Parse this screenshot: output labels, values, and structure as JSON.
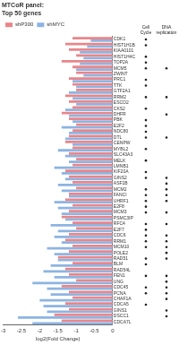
{
  "chart_data": {
    "type": "bar",
    "orientation": "horizontal",
    "title": [
      "MTCoR panel:",
      "Top 50 genes"
    ],
    "x_label": "log2(Fold Change)",
    "categories": [
      "CDK1",
      "HIST1H1B",
      "KIAA0101",
      "HIST1H4C",
      "TOP2A",
      "MCM5",
      "ZWINT",
      "PRC1",
      "TTK",
      "GTF2A1",
      "RRM2",
      "ESCO2",
      "CKS2",
      "DHFR",
      "PBK",
      "E2F2",
      "NDC80",
      "DTL",
      "CENPW",
      "MYBL2",
      "SLC43A3",
      "MELK",
      "LMNB1",
      "KIF20A",
      "GINS2",
      "ASF1B",
      "MCM2",
      "FANCI",
      "UHRF1",
      "E2F8",
      "MCM3",
      "PSMC3IP",
      "RFC4",
      "E2F7",
      "CDC6",
      "RRM1",
      "MCM10",
      "POLE2",
      "RAD51",
      "BLM",
      "RAD54L",
      "FEN1",
      "UNG",
      "CDC45",
      "PCNA",
      "CHAF1A",
      "CDCA5",
      "GINS1",
      "DSCC1",
      "CDCA7L"
    ],
    "series": [
      {
        "name": "shP300",
        "color": "#e8868a",
        "values": [
          -1.1,
          -1.3,
          -1.2,
          -1.0,
          -1.4,
          -1.1,
          -1.0,
          -1.2,
          -1.1,
          -1.0,
          -1.3,
          -1.2,
          -1.1,
          -1.4,
          -1.2,
          -1.0,
          -1.1,
          -1.2,
          -1.3,
          -1.1,
          -1.2,
          -1.0,
          -1.1,
          -1.3,
          -1.2,
          -1.1,
          -1.0,
          -1.2,
          -1.3,
          -1.1,
          -1.2,
          -1.4,
          -1.1,
          -1.0,
          -1.2,
          -1.3,
          -1.1,
          -1.2,
          -1.5,
          -1.1,
          -1.3,
          -1.2,
          -1.0,
          -1.4,
          -1.2,
          -1.1,
          -1.3,
          -1.2,
          -1.6,
          -1.4
        ]
      },
      {
        "name": "shMYC",
        "color": "#8db4e2",
        "values": [
          -0.6,
          -0.7,
          -0.9,
          -0.8,
          -0.9,
          -1.0,
          -0.8,
          -1.1,
          -1.0,
          -1.2,
          -1.1,
          -1.0,
          -1.3,
          -1.2,
          -1.1,
          -1.4,
          -1.2,
          -1.3,
          -1.1,
          -1.5,
          -1.3,
          -1.2,
          -1.6,
          -1.4,
          -1.3,
          -1.5,
          -1.4,
          -1.2,
          -1.6,
          -1.5,
          -1.4,
          -1.3,
          -1.7,
          -1.5,
          -1.6,
          -1.4,
          -1.8,
          -1.6,
          -1.5,
          -1.7,
          -1.9,
          -1.6,
          -2.2,
          -1.8,
          -1.7,
          -2.0,
          -1.9,
          -1.8,
          -2.6,
          -2.2
        ]
      }
    ],
    "xlim": [
      -3,
      0
    ],
    "xticks": [
      -3,
      -2.5,
      -2,
      -1.5,
      -1,
      -0.5,
      0
    ],
    "grid": false,
    "legend": "top",
    "annotation_columns": [
      {
        "label": "Cell Cycle",
        "marks": [
          true,
          true,
          false,
          true,
          true,
          true,
          false,
          true,
          true,
          false,
          true,
          false,
          true,
          false,
          true,
          true,
          true,
          true,
          false,
          true,
          false,
          true,
          false,
          true,
          true,
          false,
          true,
          true,
          true,
          true,
          true,
          false,
          true,
          true,
          true,
          true,
          true,
          false,
          true,
          true,
          false,
          true,
          false,
          true,
          true,
          false,
          true,
          false,
          false,
          false
        ]
      },
      {
        "label": "DNA replication",
        "marks": [
          false,
          false,
          false,
          false,
          false,
          true,
          false,
          false,
          false,
          false,
          true,
          false,
          false,
          true,
          false,
          false,
          false,
          true,
          false,
          false,
          false,
          false,
          false,
          false,
          true,
          true,
          true,
          true,
          true,
          false,
          true,
          false,
          true,
          false,
          true,
          true,
          true,
          true,
          true,
          false,
          false,
          true,
          true,
          true,
          true,
          true,
          false,
          true,
          true,
          false
        ]
      }
    ]
  }
}
